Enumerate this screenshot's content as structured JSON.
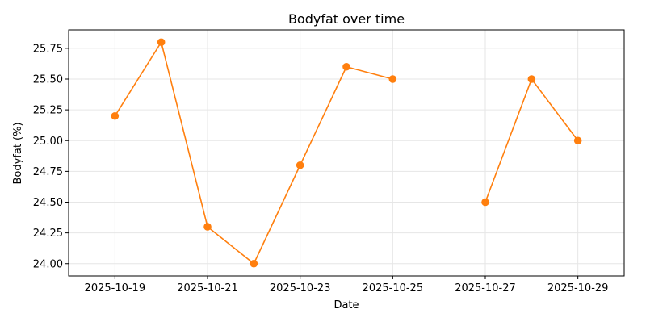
{
  "chart_data": {
    "type": "line",
    "title": "Bodyfat over time",
    "xlabel": "Date",
    "ylabel": "Bodyfat (%)",
    "series": [
      {
        "color": "#ff7f0e",
        "points": [
          {
            "x": "2025-10-19",
            "y": 25.2
          },
          {
            "x": "2025-10-20",
            "y": 25.8
          },
          {
            "x": "2025-10-21",
            "y": 24.3
          },
          {
            "x": "2025-10-22",
            "y": 24.0
          },
          {
            "x": "2025-10-23",
            "y": 24.8
          },
          {
            "x": "2025-10-24",
            "y": 25.6
          },
          {
            "x": "2025-10-25",
            "y": 25.5
          },
          {
            "x": "2025-10-26",
            "y": null
          },
          {
            "x": "2025-10-27",
            "y": 24.5
          },
          {
            "x": "2025-10-28",
            "y": 25.5
          },
          {
            "x": "2025-10-29",
            "y": 25.0
          }
        ]
      }
    ],
    "xlim": [
      "2025-10-18",
      "2025-10-30"
    ],
    "ylim": [
      23.9,
      25.9
    ],
    "xticks": [
      "2025-10-19",
      "2025-10-21",
      "2025-10-23",
      "2025-10-25",
      "2025-10-27",
      "2025-10-29"
    ],
    "yticks": [
      "24.00",
      "24.25",
      "24.50",
      "24.75",
      "25.00",
      "25.25",
      "25.50",
      "25.75"
    ],
    "grid": true
  }
}
